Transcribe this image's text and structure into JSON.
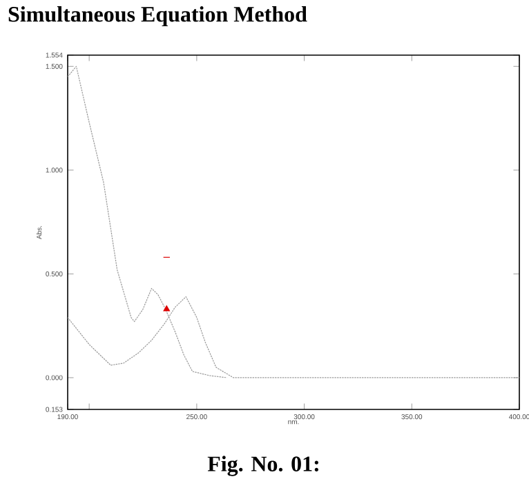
{
  "chart_data": {
    "type": "line",
    "title": "Simultaneous Equation Method",
    "xlabel": "nm.",
    "ylabel": "Abs.",
    "annotations": [
      "Fig. No. 01:"
    ],
    "xlim": [
      190,
      400
    ],
    "xticks": [
      {
        "value": 190,
        "label": "190.00"
      },
      {
        "value": 200,
        "label": null
      },
      {
        "value": 250,
        "label": "250.00"
      },
      {
        "value": 300,
        "label": "300.00"
      },
      {
        "value": 350,
        "label": "350.00"
      },
      {
        "value": 400,
        "label": "400.00"
      }
    ],
    "ylim": [
      -0.153,
      1.554
    ],
    "yticks": [
      {
        "value": -0.153,
        "label": "0.153"
      },
      {
        "value": 0,
        "label": "0.000"
      },
      {
        "value": 0.5,
        "label": "0.500"
      },
      {
        "value": 1.0,
        "label": "1.000"
      },
      {
        "value": 1.5,
        "label": "1.500"
      },
      {
        "value": 1.554,
        "label": "1.554"
      }
    ],
    "line_style": "dotted",
    "marker": "none",
    "series": [
      {
        "color": "#999999",
        "x": [
          190,
          194,
          200,
          206.7,
          213,
          219.5,
          221,
          225,
          229,
          232,
          235.5,
          240,
          244,
          248,
          256,
          264
        ],
        "values": [
          1.45,
          1.5,
          1.23,
          0.94,
          0.52,
          0.29,
          0.27,
          0.33,
          0.43,
          0.4,
          0.33,
          0.22,
          0.11,
          0.03,
          0.01,
          0.0
        ]
      },
      {
        "color": "#999999",
        "x": [
          190,
          200,
          210,
          216,
          223,
          229,
          235,
          240,
          245,
          250,
          254,
          259,
          267,
          300,
          350,
          400
        ],
        "values": [
          0.29,
          0.16,
          0.06,
          0.07,
          0.12,
          0.18,
          0.26,
          0.34,
          0.39,
          0.29,
          0.17,
          0.05,
          0.0,
          0.0,
          0.0,
          0.0
        ]
      },
      {
        "type": "scatter",
        "marker": "triangle",
        "color": "#dd0000",
        "x": [
          236
        ],
        "values": [
          0.33
        ]
      },
      {
        "line_style": "solid",
        "color": "#dd0000",
        "x": [
          234.5,
          237.5
        ],
        "values": [
          0.58,
          0.58
        ]
      }
    ]
  }
}
